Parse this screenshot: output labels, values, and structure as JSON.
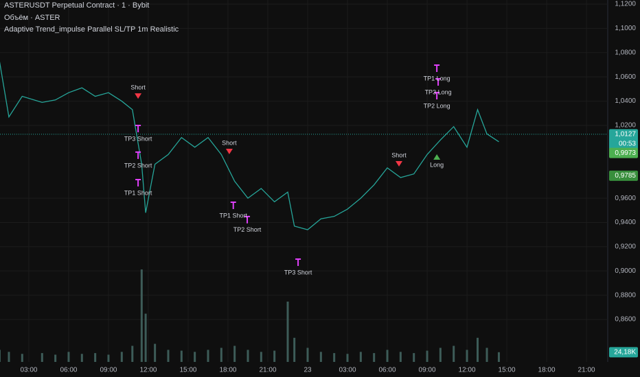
{
  "chart_data": {
    "type": "line",
    "title": "ASTERUSDT Perpetual Contract · 1 · Bybit",
    "subtitle": "Объём · ASTER",
    "indicator": "Adaptive Trend_impulse Parallel SL/TP 1m Realistic",
    "x": [
      0.8,
      1.5,
      2.5,
      4,
      5,
      6,
      7,
      8,
      9,
      10,
      10.8,
      11.5,
      11.8,
      12.5,
      13.5,
      14.5,
      15.5,
      16.5,
      17.5,
      18.5,
      19.5,
      20.5,
      21.5,
      22.5,
      23,
      24,
      25,
      26,
      27,
      28,
      29,
      30,
      31,
      32,
      33,
      34,
      35,
      36,
      36.8,
      37.5,
      38.4
    ],
    "series": [
      {
        "name": "ASTERUSDT",
        "color": "#26a69a",
        "values": [
          1.0725,
          1.027,
          1.044,
          1.039,
          1.041,
          1.047,
          1.051,
          1.044,
          1.047,
          1.04,
          1.033,
          0.988,
          0.948,
          0.988,
          0.996,
          1.01,
          1.002,
          1.01,
          0.996,
          0.974,
          0.96,
          0.968,
          0.957,
          0.965,
          0.937,
          0.934,
          0.943,
          0.945,
          0.951,
          0.96,
          0.971,
          0.985,
          0.977,
          0.98,
          0.996,
          1.008,
          1.019,
          1.002,
          1.033,
          1.013,
          1.0065
        ]
      },
      {
        "name": "Volume",
        "color": "#3d5c58",
        "axis": "y2",
        "values": [
          30,
          25,
          20,
          22,
          18,
          25,
          20,
          22,
          18,
          25,
          40,
          230,
          120,
          45,
          30,
          28,
          25,
          30,
          35,
          40,
          30,
          25,
          28,
          150,
          60,
          35,
          25,
          22,
          20,
          25,
          22,
          30,
          25,
          22,
          28,
          35,
          40,
          30,
          60,
          35,
          24.18
        ]
      }
    ],
    "xlim": [
      0.83,
      46.6
    ],
    "ylim": [
      0.825,
      1.1234
    ],
    "y2lim": [
      0,
      900
    ],
    "xticks": [
      {
        "value": 3,
        "label": "03:00"
      },
      {
        "value": 6,
        "label": "06:00"
      },
      {
        "value": 9,
        "label": "09:00"
      },
      {
        "value": 12,
        "label": "12:00"
      },
      {
        "value": 15,
        "label": "15:00"
      },
      {
        "value": 18,
        "label": "18:00"
      },
      {
        "value": 21,
        "label": "21:00"
      },
      {
        "value": 24,
        "label": "23"
      },
      {
        "value": 27,
        "label": "03:00"
      },
      {
        "value": 30,
        "label": "06:00"
      },
      {
        "value": 33,
        "label": "09:00"
      },
      {
        "value": 36,
        "label": "12:00"
      },
      {
        "value": 39,
        "label": "15:00"
      },
      {
        "value": 42,
        "label": "18:00"
      },
      {
        "value": 45,
        "label": "21:00"
      }
    ],
    "yticks": [
      {
        "value": 1.12,
        "label": "1,1200"
      },
      {
        "value": 1.1,
        "label": "1,1000"
      },
      {
        "value": 1.08,
        "label": "1,0800"
      },
      {
        "value": 1.06,
        "label": "1,0600"
      },
      {
        "value": 1.04,
        "label": "1,0400"
      },
      {
        "value": 1.02,
        "label": "1,0200"
      },
      {
        "value": 0.96,
        "label": "0,9600"
      },
      {
        "value": 0.94,
        "label": "0,9400"
      },
      {
        "value": 0.92,
        "label": "0,9200"
      },
      {
        "value": 0.9,
        "label": "0,9000"
      },
      {
        "value": 0.88,
        "label": "0,8800"
      },
      {
        "value": 0.86,
        "label": "0,8600"
      }
    ],
    "grid": true,
    "price_labels": [
      {
        "value": 1.0127,
        "label": "1,0127",
        "color": "#26a69a"
      },
      {
        "value": 0.9973,
        "label": "0,9973",
        "color": "#4caf50"
      },
      {
        "value": 0.9785,
        "label": "0,9785",
        "color": "#388e3c"
      }
    ],
    "countdown": "00:53",
    "volume_label": {
      "value": 24.18,
      "label": "24,18K"
    },
    "annotations": [
      {
        "text": "Short",
        "x": 11.23,
        "y": 1.051
      },
      {
        "text": "TP3 Short",
        "x": 11.23,
        "y": 1.0087
      },
      {
        "text": "TP2 Short",
        "x": 11.23,
        "y": 0.9867
      },
      {
        "text": "TP1 Short",
        "x": 11.23,
        "y": 0.964
      },
      {
        "text": "Short",
        "x": 18.1,
        "y": 1.0053
      },
      {
        "text": "TP1 Short",
        "x": 18.4,
        "y": 0.9454
      },
      {
        "text": "TP2 Short",
        "x": 19.45,
        "y": 0.9336
      },
      {
        "text": "TP3 Short",
        "x": 23.28,
        "y": 0.8985
      },
      {
        "text": "Short",
        "x": 30.88,
        "y": 0.9951
      },
      {
        "text": "TP1 Long",
        "x": 33.73,
        "y": 1.0584
      },
      {
        "text": "TP3 Long",
        "x": 33.83,
        "y": 1.0471
      },
      {
        "text": "TP2 Long",
        "x": 33.73,
        "y": 1.0358
      },
      {
        "text": "Long",
        "x": 33.73,
        "y": 0.9872
      }
    ]
  }
}
